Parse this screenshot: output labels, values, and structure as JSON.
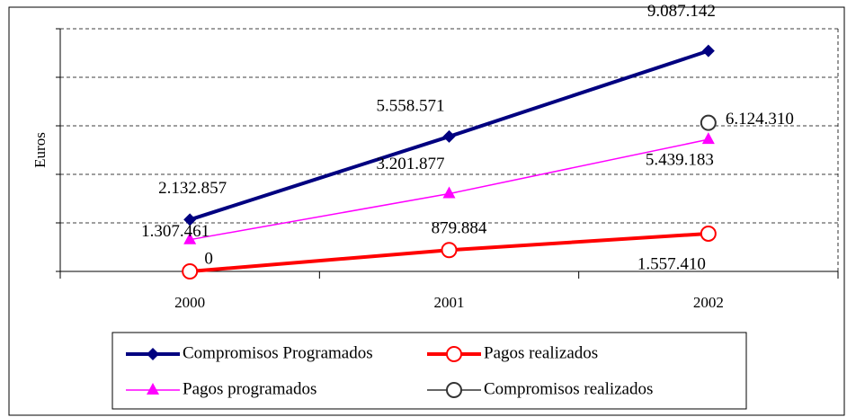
{
  "chart_data": {
    "type": "line",
    "y_label": "Euros",
    "categories": [
      "2000",
      "2001",
      "2002"
    ],
    "ylim": [
      0,
      10000000
    ],
    "yticks": [
      0,
      2000000,
      4000000,
      6000000,
      8000000,
      10000000
    ],
    "grid": true,
    "series": [
      {
        "name": "Compromisos Programados",
        "color": "#000080",
        "marker": "diamond",
        "values": [
          2132857,
          5558571,
          9087142
        ],
        "value_labels": [
          "2.132.857",
          "5.558.571",
          "9.087.142"
        ]
      },
      {
        "name": "Pagos realizados",
        "color": "#ff0000",
        "marker": "circle",
        "values": [
          0,
          879884,
          1557410
        ],
        "value_labels": [
          "0",
          "879.884",
          "1.557.410"
        ]
      },
      {
        "name": "Pagos programados",
        "color": "#ff00ff",
        "marker": "triangle",
        "values": [
          1307461,
          3201877,
          5439183
        ],
        "value_labels": [
          "1.307.461",
          "3.201.877",
          "5.439.183"
        ]
      },
      {
        "name": "Compromisos realizados",
        "color": "#333333",
        "marker": "circle",
        "values": [
          null,
          null,
          6124310
        ],
        "value_labels": [
          null,
          null,
          "6.124.310"
        ]
      }
    ]
  }
}
